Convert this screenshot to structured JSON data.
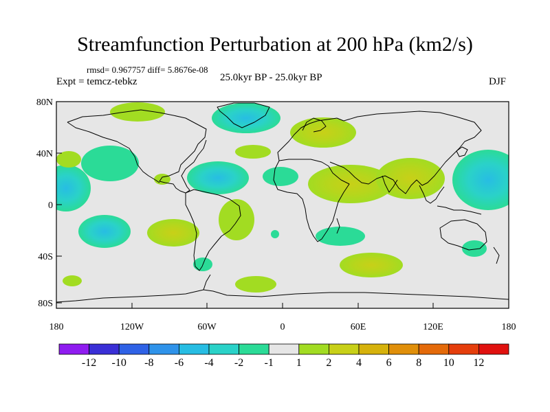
{
  "title": "Streamfunction Perturbation at 200 hPa (km2/s)",
  "stats": "rmsd= 0.967757 diff= 5.8676e-08",
  "experiment": "Expt = temcz-tebkz",
  "period": "25.0kyr BP - 25.0kyr BP",
  "season": "DJF",
  "axes": {
    "y_labels": [
      "80N",
      "40N",
      "0",
      "40S",
      "80S"
    ],
    "x_labels": [
      "180",
      "120W",
      "60W",
      "0",
      "60E",
      "120E",
      "180"
    ]
  },
  "colorbar": {
    "labels": [
      "-12",
      "-10",
      "-8",
      "-6",
      "-4",
      "-2",
      "-1",
      "1",
      "2",
      "4",
      "6",
      "8",
      "10",
      "12"
    ],
    "colors": [
      "#8f1cf0",
      "#3a2fd6",
      "#2f62e6",
      "#2f93ea",
      "#27bde3",
      "#2ad2c8",
      "#2bdb97",
      "#e6e6e6",
      "#a2dc22",
      "#c8d018",
      "#d6b20c",
      "#e08f0a",
      "#e46a0a",
      "#e53e0c",
      "#e0110f"
    ]
  },
  "colors": {
    "ocean": "#e6e6e6",
    "coast": "#000000"
  }
}
